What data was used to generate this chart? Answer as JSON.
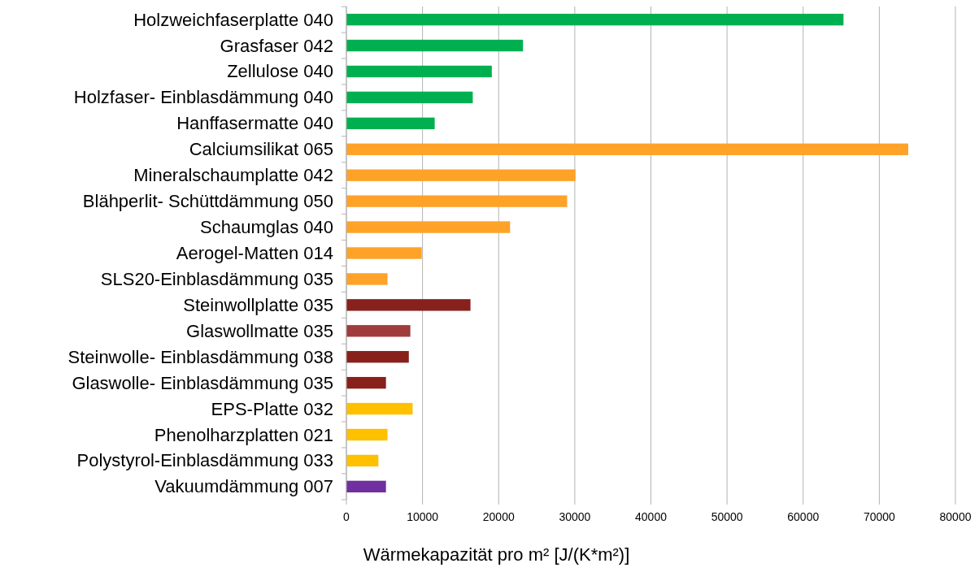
{
  "chart_data": {
    "type": "bar",
    "orientation": "horizontal",
    "xlabel": "Wärmekapazität pro m² [J/(K*m²)]",
    "categories": [
      "Holzweichfaserplatte 040",
      "Grasfaser 042",
      "Zellulose 040",
      "Holzfaser- Einblasdämmung 040",
      "Hanffasermatte 040",
      "Calciumsilikat 065",
      "Mineralschaumplatte 042",
      "Blähperlit- Schüttdämmung 050",
      "Schaumglas 040",
      "Aerogel-Matten 014",
      "SLS20-Einblasdämmung 035",
      "Steinwollplatte 035",
      "Glaswollmatte 035",
      "Steinwolle- Einblasdämmung 038",
      "Glaswolle- Einblasdämmung 035",
      "EPS-Platte 032",
      "Phenolharzplatten 021",
      "Polystyrol-Einblasdämmung 033",
      "Vakuumdämmung 007"
    ],
    "values": [
      65300,
      23200,
      19100,
      16600,
      11600,
      73800,
      30100,
      29000,
      21500,
      9900,
      5400,
      16300,
      8400,
      8200,
      5200,
      8700,
      5400,
      4200,
      5200
    ],
    "colors": [
      "#00b050",
      "#00b050",
      "#00b050",
      "#00b050",
      "#00b050",
      "#ffa228",
      "#ffa228",
      "#ffa228",
      "#ffa228",
      "#ffa228",
      "#ffa228",
      "#88201c",
      "#a03c3c",
      "#88201c",
      "#88201c",
      "#ffc000",
      "#ffc000",
      "#ffc000",
      "#7030a0"
    ],
    "xlim": [
      0,
      80000
    ],
    "xticks": [
      0,
      10000,
      20000,
      30000,
      40000,
      50000,
      60000,
      70000,
      80000
    ],
    "grid": "x"
  }
}
